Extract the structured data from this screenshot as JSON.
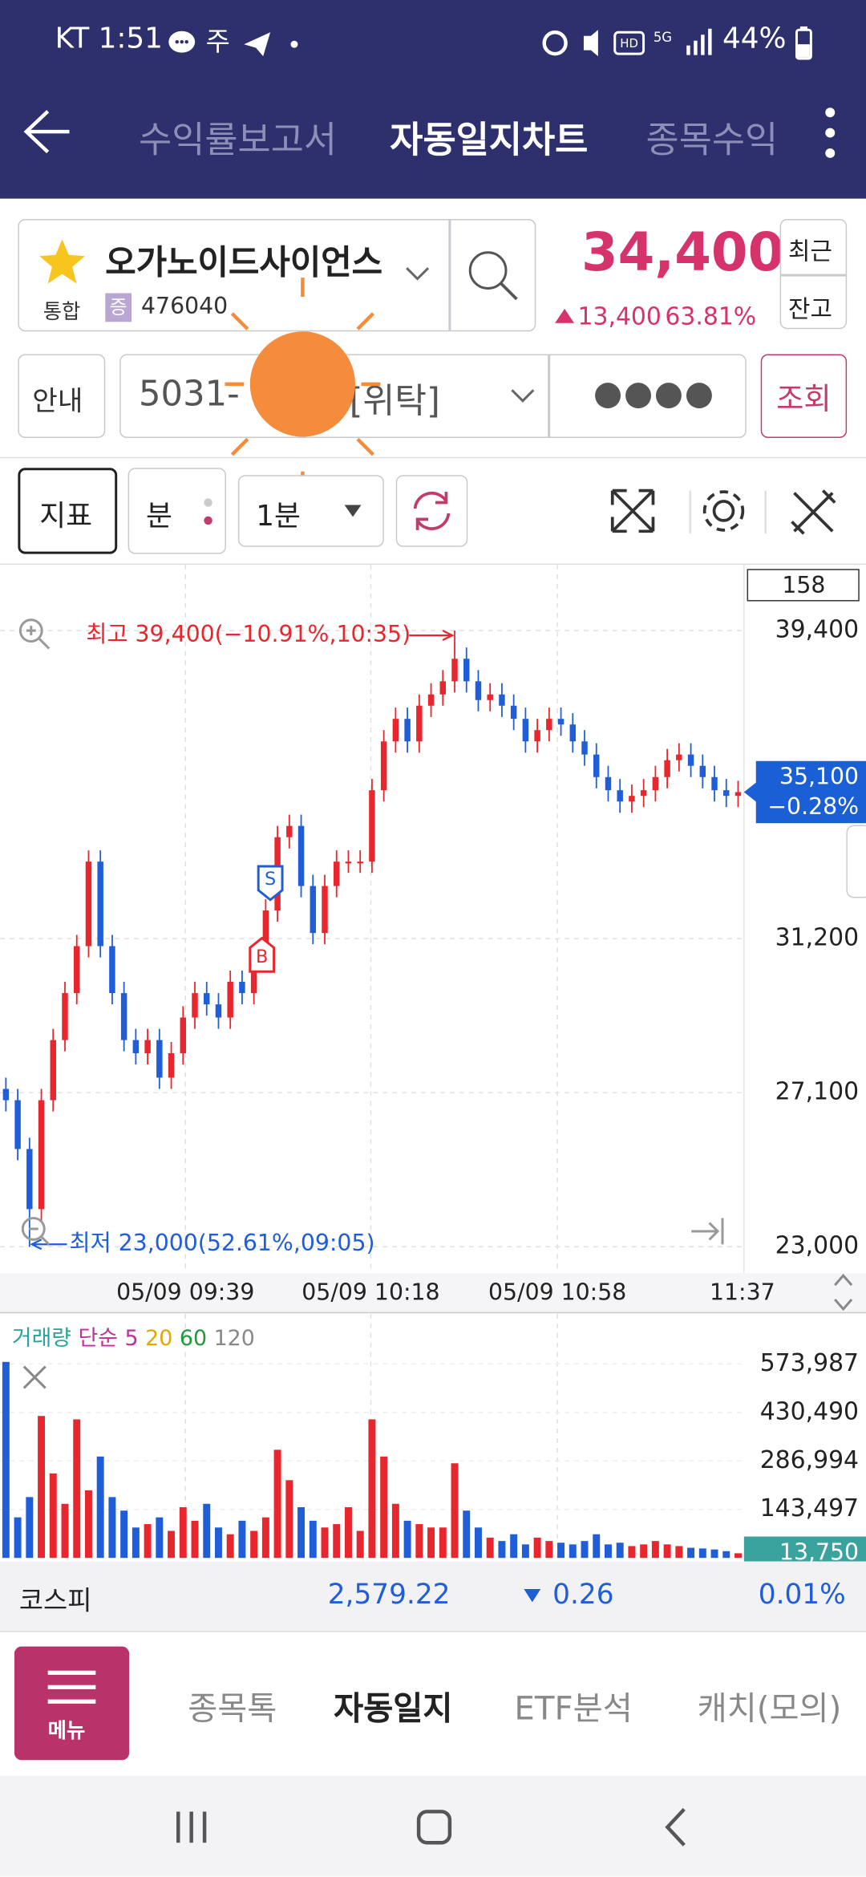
{
  "status_bar": {
    "time": "KT 1:51",
    "battery": "44%"
  },
  "header": {
    "tabs": [
      "수익률보고서",
      "자동일지차트",
      "종목수익"
    ]
  },
  "stock": {
    "name": "오가노이드사이언스",
    "market": "통합",
    "badge": "증",
    "code": "476040",
    "price": "34,400",
    "change": "13,400",
    "change_rate": "63.81%",
    "recent": "최근",
    "balance": "잔고"
  },
  "account": {
    "guide": "안내",
    "number": "5031-",
    "type": "[위탁]",
    "password": "●●●●",
    "query": "조회"
  },
  "toolbar": {
    "indicator": "지표",
    "period": "분",
    "interval": "1분"
  },
  "chart_data": {
    "type": "candlestick",
    "up_color": "#e8262d",
    "down_color": "#1f5ed8",
    "count_label": "158",
    "high_label": "최고 39,400(−10.91%,10:35)",
    "low_label": "최저 23,000(52.61%,09:05)",
    "sell_marker": "S",
    "buy_marker": "B",
    "x_labels": [
      "05/09 09:39",
      "05/09 10:18",
      "05/09 10:58",
      "11:37"
    ],
    "open": [
      27200,
      26900,
      25600,
      24000,
      26900,
      28500,
      29750,
      31000,
      33250,
      31000,
      29750,
      28500,
      28150,
      28500,
      27500,
      28150,
      29100,
      29750,
      29450,
      29100,
      30050,
      29750,
      30700,
      31950,
      33900,
      34200,
      32600,
      31350,
      32600,
      33250,
      33250,
      33250,
      35150,
      36450,
      37050,
      36450,
      37400,
      37700,
      38050,
      38650,
      38050,
      37550,
      37700,
      37400,
      37050,
      36450,
      36750,
      37050,
      36900,
      36450,
      36100,
      35500,
      35150,
      34850,
      35000,
      35150,
      35500,
      35950,
      36100,
      35800,
      35500,
      35150,
      35000
    ],
    "high": [
      27500,
      27200,
      25900,
      27200,
      28800,
      30050,
      31300,
      33550,
      33550,
      31300,
      30050,
      28800,
      28800,
      28800,
      28450,
      29400,
      30050,
      30050,
      29750,
      30350,
      30350,
      31000,
      32250,
      34200,
      34500,
      34500,
      32900,
      32900,
      33550,
      33550,
      33550,
      35450,
      36750,
      37350,
      37350,
      37700,
      38000,
      38350,
      39400,
      38950,
      38350,
      38000,
      38000,
      37700,
      37350,
      37050,
      37350,
      37350,
      37200,
      36750,
      36400,
      35800,
      35450,
      35300,
      35450,
      35800,
      36250,
      36400,
      36400,
      36100,
      35800,
      35450,
      35400
    ],
    "low": [
      26600,
      25300,
      23000,
      23700,
      26600,
      28200,
      29450,
      30700,
      30700,
      29450,
      28200,
      27850,
      27850,
      27200,
      27200,
      27850,
      28800,
      29150,
      28800,
      28800,
      29450,
      29450,
      30400,
      31650,
      33600,
      32300,
      31050,
      31050,
      32300,
      32950,
      32950,
      32950,
      34850,
      36150,
      36150,
      36150,
      37100,
      37400,
      37750,
      37750,
      37250,
      37250,
      37100,
      36750,
      36150,
      36150,
      36450,
      36600,
      36150,
      35800,
      35200,
      34850,
      34550,
      34550,
      34700,
      34850,
      35200,
      35650,
      35500,
      35200,
      34850,
      34700,
      34700
    ],
    "close": [
      26900,
      25600,
      24000,
      26900,
      28500,
      29750,
      31000,
      33250,
      31000,
      29750,
      28500,
      28150,
      28500,
      27500,
      28150,
      29100,
      29750,
      29450,
      29100,
      30050,
      29750,
      30700,
      31950,
      33900,
      34200,
      32600,
      31350,
      32600,
      33250,
      33250,
      33250,
      35150,
      36450,
      37050,
      36450,
      37400,
      37700,
      38050,
      38650,
      38050,
      37550,
      37700,
      37400,
      37050,
      36450,
      36750,
      37050,
      36900,
      36450,
      36100,
      35500,
      35150,
      34850,
      35000,
      35150,
      35500,
      35950,
      36100,
      35800,
      35500,
      35150,
      35000,
      35100
    ],
    "ylim": [
      22360,
      40960
    ],
    "yticks": [
      {
        "value": 39400,
        "label": "39,400"
      },
      {
        "value": 31200,
        "label": "31,200"
      },
      {
        "value": 27100,
        "label": "27,100"
      },
      {
        "value": 23000,
        "label": "23,000"
      }
    ],
    "grid": true,
    "current": {
      "value": 35100,
      "label": "35,100"
    },
    "current_change": "−0.28%",
    "volume": {
      "title": "거래량",
      "ma_type": "단순",
      "ma_periods": [
        5,
        20,
        60,
        120
      ],
      "ma_colors": [
        "#c0309a",
        "#e0a800",
        "#1e9a3a",
        "#888888"
      ],
      "values": [
        580000,
        120000,
        180000,
        420000,
        250000,
        160000,
        410000,
        200000,
        300000,
        180000,
        140000,
        90000,
        100000,
        120000,
        80000,
        150000,
        110000,
        160000,
        90000,
        70000,
        110000,
        80000,
        120000,
        320000,
        230000,
        150000,
        110000,
        90000,
        100000,
        150000,
        80000,
        410000,
        300000,
        160000,
        110000,
        100000,
        90000,
        90000,
        280000,
        140000,
        90000,
        60000,
        50000,
        70000,
        40000,
        60000,
        50000,
        45000,
        40000,
        50000,
        70000,
        40000,
        45000,
        35000,
        40000,
        50000,
        40000,
        35000,
        30000,
        28000,
        25000,
        20000,
        13750
      ],
      "ylim": [
        0,
        697500
      ],
      "yticks": [
        {
          "value": 573987,
          "label": "573,987"
        },
        {
          "value": 430490,
          "label": "430,490"
        },
        {
          "value": 286994,
          "label": "286,994"
        },
        {
          "value": 143497,
          "label": "143,497"
        }
      ],
      "current": {
        "value": 13750,
        "label": "13,750"
      }
    }
  },
  "kospi": {
    "name": "코스피",
    "value": "2,579.22",
    "change": "0.26",
    "rate": "0.01%"
  },
  "bottom_nav": {
    "menu": "메뉴",
    "tabs": [
      "종목톡",
      "자동일지",
      "ETF분석",
      "캐치(모의)"
    ]
  }
}
